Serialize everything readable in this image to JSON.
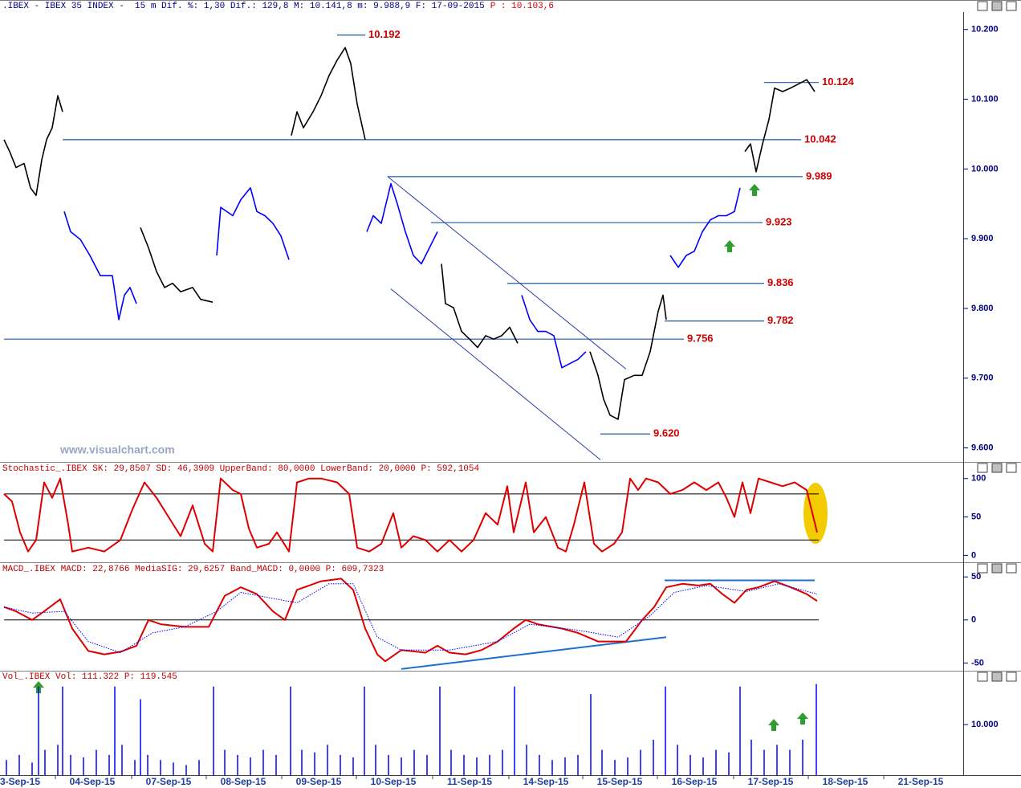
{
  "chart_data": [
    {
      "type": "line",
      "title": ".IBEX - IBEX 35 INDEX -  15 m Dif. %: 1,30 Dif.: 129,8 M: 10.141,8 m: 9.988,9 F: 17-09-2015",
      "title_extra": "P : 10.103,6",
      "title_color": "#000080",
      "title_extra_color": "#d00000",
      "watermark": "www.visualchart.com",
      "xlim": [
        0,
        1200
      ],
      "ylim": [
        9.58,
        10.225
      ],
      "yticks": [
        {
          "value": 10.2,
          "label": "10.200"
        },
        {
          "value": 10.1,
          "label": "10.100"
        },
        {
          "value": 10.0,
          "label": "10.000"
        },
        {
          "value": 9.9,
          "label": "9.900"
        },
        {
          "value": 9.8,
          "label": "9.800"
        },
        {
          "value": 9.7,
          "label": "9.700"
        },
        {
          "value": 9.6,
          "label": "9.600"
        }
      ],
      "series": [
        {
          "color": "#000000",
          "line_width": 1.6,
          "x": [
            5,
            12,
            20,
            30,
            38,
            45,
            52,
            58,
            65,
            72,
            78,
            79,
            175,
            185,
            195,
            205,
            215,
            225,
            240,
            250,
            265,
            266,
            363,
            370,
            378,
            390,
            400,
            410,
            420,
            430,
            437,
            445,
            455,
            456,
            550,
            555,
            565,
            575,
            585,
            595,
            605,
            615,
            625,
            635,
            645,
            646,
            735,
            745,
            752,
            760,
            770,
            778,
            790,
            800,
            810,
            820,
            826,
            830,
            831,
            928,
            935,
            942,
            950,
            958,
            965,
            975,
            985,
            995,
            1005,
            1015
          ],
          "values": [
            10.042,
            10.025,
            10.002,
            10.008,
            9.973,
            9.962,
            10.013,
            10.042,
            10.059,
            10.105,
            10.082,
            null,
            9.916,
            9.887,
            9.853,
            9.83,
            9.836,
            9.824,
            9.83,
            9.813,
            9.809,
            null,
            10.048,
            10.082,
            10.059,
            10.082,
            10.105,
            10.134,
            10.156,
            10.174,
            10.151,
            10.093,
            10.042,
            null,
            9.864,
            9.807,
            9.801,
            9.767,
            9.756,
            9.744,
            9.761,
            9.756,
            9.761,
            9.773,
            9.75,
            null,
            9.738,
            9.704,
            9.67,
            9.647,
            9.641,
            9.698,
            9.704,
            9.704,
            9.738,
            9.796,
            9.819,
            9.784,
            null,
            10.025,
            10.036,
            9.996,
            10.036,
            10.071,
            10.116,
            10.111,
            10.116,
            10.122,
            10.128,
            10.111
          ]
        },
        {
          "color": "#0000ff",
          "line_width": 1.6,
          "x": [
            80,
            88,
            100,
            112,
            125,
            140,
            148,
            155,
            162,
            170,
            171,
            270,
            275,
            290,
            300,
            312,
            320,
            330,
            340,
            350,
            360,
            361,
            457,
            465,
            475,
            487,
            495,
            505,
            515,
            525,
            535,
            545,
            546,
            650,
            660,
            670,
            680,
            690,
            700,
            710,
            720,
            730,
            731,
            835,
            845,
            855,
            865,
            875,
            885,
            895,
            905,
            915,
            922
          ],
          "values": [
            9.939,
            9.91,
            9.899,
            9.876,
            9.847,
            9.847,
            9.784,
            9.819,
            9.83,
            9.807,
            null,
            9.876,
            9.945,
            9.933,
            9.956,
            9.973,
            9.939,
            9.933,
            9.922,
            9.904,
            9.87,
            null,
            9.91,
            9.933,
            9.922,
            9.979,
            9.95,
            9.91,
            9.876,
            9.864,
            9.887,
            9.91,
            null,
            9.819,
            9.784,
            9.767,
            9.767,
            9.761,
            9.715,
            9.721,
            9.727,
            9.738,
            null,
            9.876,
            9.859,
            9.876,
            9.882,
            9.91,
            9.927,
            9.933,
            9.933,
            9.939,
            9.973
          ]
        }
      ],
      "level_color": "#1f5aa6",
      "level_label_color": "#cc0000",
      "levels": [
        {
          "value": 10.192,
          "label": "10.192",
          "from": 420,
          "to": 455
        },
        {
          "value": 10.124,
          "label": "10.124",
          "from": 952,
          "to": 1020
        },
        {
          "value": 10.042,
          "label": "10.042",
          "from": 78,
          "to": 998
        },
        {
          "value": 9.989,
          "label": "9.989",
          "from": 483,
          "to": 1000
        },
        {
          "value": 9.923,
          "label": "9.923",
          "from": 537,
          "to": 950
        },
        {
          "value": 9.836,
          "label": "9.836",
          "from": 632,
          "to": 952
        },
        {
          "value": 9.782,
          "label": "9.782",
          "from": 828,
          "to": 952
        },
        {
          "value": 9.756,
          "label": "9.756",
          "from": 5,
          "to": 852
        },
        {
          "value": 9.62,
          "label": "9.620",
          "from": 748,
          "to": 810
        }
      ],
      "trendline_color": "#2a3fa8",
      "trendlines": [
        {
          "x": [
            483,
            780
          ],
          "y": [
            9.989,
            9.713
          ]
        },
        {
          "x": [
            487,
            748
          ],
          "y": [
            9.828,
            9.583
          ]
        }
      ]
    },
    {
      "type": "line",
      "title": "Stochastic_.IBEX SK: 29,8507 SD: 46,3909 UpperBand: 80,0000 LowerBand: 20,0000 P: 592,1054",
      "title_color": "#c00000",
      "xlim": [
        0,
        1200
      ],
      "ylim": [
        -9,
        106
      ],
      "yticks": [
        0,
        50,
        100
      ],
      "bands": [
        80,
        20
      ],
      "series": [
        {
          "color": "#dd0000",
          "line_width": 2,
          "x": [
            5,
            15,
            25,
            35,
            45,
            55,
            65,
            75,
            85,
            90,
            110,
            130,
            150,
            165,
            180,
            195,
            210,
            225,
            240,
            255,
            265,
            275,
            290,
            300,
            310,
            320,
            335,
            345,
            360,
            370,
            385,
            400,
            420,
            435,
            445,
            460,
            475,
            490,
            500,
            515,
            530,
            545,
            560,
            575,
            590,
            605,
            620,
            632,
            640,
            655,
            665,
            680,
            695,
            705,
            715,
            728,
            740,
            750,
            765,
            775,
            785,
            795,
            805,
            820,
            835,
            850,
            865,
            880,
            895,
            905,
            915,
            925,
            935,
            945,
            960,
            975,
            990,
            1005,
            1018
          ],
          "values": [
            80,
            70,
            30,
            5,
            20,
            95,
            75,
            100,
            40,
            5,
            10,
            5,
            20,
            60,
            95,
            75,
            50,
            25,
            65,
            15,
            5,
            100,
            85,
            80,
            35,
            10,
            15,
            30,
            5,
            95,
            100,
            100,
            95,
            80,
            10,
            5,
            15,
            55,
            10,
            25,
            20,
            5,
            20,
            5,
            20,
            55,
            40,
            90,
            30,
            95,
            30,
            50,
            10,
            5,
            40,
            95,
            15,
            5,
            15,
            30,
            100,
            85,
            100,
            95,
            80,
            85,
            95,
            85,
            95,
            75,
            50,
            95,
            55,
            100,
            95,
            90,
            95,
            85,
            30
          ]
        }
      ]
    },
    {
      "type": "line",
      "title": "MACD_.IBEX MACD: 22,8766 MediaSIG: 29,6257 Band_MACD: 0,0000 P: 609,7323",
      "title_color": "#c00000",
      "xlim": [
        0,
        1200
      ],
      "ylim": [
        -59,
        53
      ],
      "yticks": [
        -50,
        0,
        50
      ],
      "bands": [
        0
      ],
      "series": [
        {
          "color": "#dd0000",
          "line_width": 2,
          "x": [
            5,
            20,
            40,
            55,
            75,
            90,
            110,
            130,
            150,
            170,
            185,
            200,
            230,
            260,
            280,
            300,
            320,
            340,
            355,
            370,
            400,
            425,
            440,
            455,
            470,
            480,
            500,
            530,
            545,
            560,
            580,
            600,
            620,
            640,
            655,
            670,
            700,
            720,
            745,
            760,
            780,
            800,
            815,
            830,
            850,
            870,
            885,
            900,
            915,
            930,
            945,
            965,
            985,
            1005,
            1018
          ],
          "values": [
            15,
            10,
            0,
            10,
            24,
            -10,
            -36,
            -40,
            -37,
            -30,
            0,
            -5,
            -8,
            -8,
            28,
            38,
            30,
            10,
            0,
            35,
            45,
            48,
            35,
            -10,
            -40,
            -48,
            -35,
            -38,
            -30,
            -38,
            -40,
            -35,
            -25,
            -10,
            0,
            -5,
            -10,
            -15,
            -25,
            -25,
            -25,
            0,
            15,
            38,
            42,
            40,
            42,
            30,
            20,
            35,
            38,
            45,
            38,
            30,
            22
          ]
        },
        {
          "color": "#0000ff",
          "line_width": 1,
          "dash": true,
          "x": [
            5,
            40,
            80,
            110,
            150,
            190,
            230,
            270,
            300,
            340,
            370,
            410,
            440,
            470,
            500,
            560,
            620,
            660,
            720,
            770,
            810,
            840,
            880,
            930,
            970,
            1018
          ],
          "values": [
            15,
            8,
            10,
            -25,
            -38,
            -15,
            -8,
            10,
            32,
            25,
            20,
            42,
            42,
            -20,
            -35,
            -35,
            -25,
            -5,
            -12,
            -20,
            5,
            32,
            40,
            33,
            42,
            30
          ]
        }
      ],
      "trendline_color": "#1e6fd0",
      "trendlines": [
        {
          "x": [
            500,
            830
          ],
          "y": [
            -57,
            -20
          ]
        },
        {
          "x": [
            828,
            1015
          ],
          "y": [
            46,
            46
          ]
        }
      ]
    },
    {
      "type": "bar",
      "title": "Vol_.IBEX Vol: 111.322 P: 119.545",
      "title_color": "#c00000",
      "color": "#0000ff",
      "xlim": [
        0,
        1200
      ],
      "ylim": [
        0,
        18250
      ],
      "yticks": [
        {
          "value": 10000,
          "label": "10.000"
        }
      ],
      "xticks": [
        {
          "value": 25,
          "label": "3-Sep-15"
        },
        {
          "value": 115,
          "label": "04-Sep-15"
        },
        {
          "value": 210,
          "label": "07-Sep-15"
        },
        {
          "value": 303,
          "label": "08-Sep-15"
        },
        {
          "value": 397,
          "label": "09-Sep-15"
        },
        {
          "value": 490,
          "label": "10-Sep-15"
        },
        {
          "value": 585,
          "label": "11-Sep-15"
        },
        {
          "value": 680,
          "label": "14-Sep-15"
        },
        {
          "value": 772,
          "label": "15-Sep-15"
        },
        {
          "value": 865,
          "label": "16-Sep-15"
        },
        {
          "value": 960,
          "label": "17-Sep-15"
        },
        {
          "value": 1053,
          "label": "18-Sep-15"
        },
        {
          "value": 1147,
          "label": "21-Sep-15"
        }
      ],
      "x": [
        8,
        24,
        40,
        48,
        56,
        72,
        78,
        88,
        104,
        120,
        136,
        143,
        152,
        168,
        175,
        184,
        200,
        216,
        232,
        248,
        266,
        280,
        296,
        312,
        328,
        344,
        362,
        376,
        392,
        408,
        424,
        440,
        454,
        468,
        484,
        500,
        516,
        532,
        548,
        562,
        578,
        594,
        610,
        626,
        641,
        656,
        672,
        688,
        704,
        720,
        736,
        750,
        766,
        782,
        798,
        814,
        829,
        844,
        860,
        876,
        892,
        908,
        922,
        936,
        952,
        968,
        984,
        1000,
        1017
      ],
      "values": [
        3000,
        4000,
        2500,
        17500,
        5000,
        6000,
        17500,
        4000,
        3500,
        5000,
        4000,
        17500,
        6000,
        3000,
        15000,
        4000,
        3000,
        2500,
        2000,
        3000,
        17500,
        5000,
        4000,
        3500,
        5000,
        4000,
        17500,
        5000,
        4500,
        6000,
        4000,
        3500,
        17500,
        6000,
        4000,
        3500,
        5000,
        4000,
        17500,
        5000,
        4000,
        3500,
        4000,
        5000,
        17500,
        6000,
        4000,
        3000,
        3500,
        4000,
        16000,
        5000,
        3000,
        3500,
        5000,
        7000,
        17500,
        6000,
        4000,
        3500,
        5000,
        4500,
        17500,
        7000,
        5000,
        6000,
        5000,
        7000,
        18000
      ]
    }
  ]
}
